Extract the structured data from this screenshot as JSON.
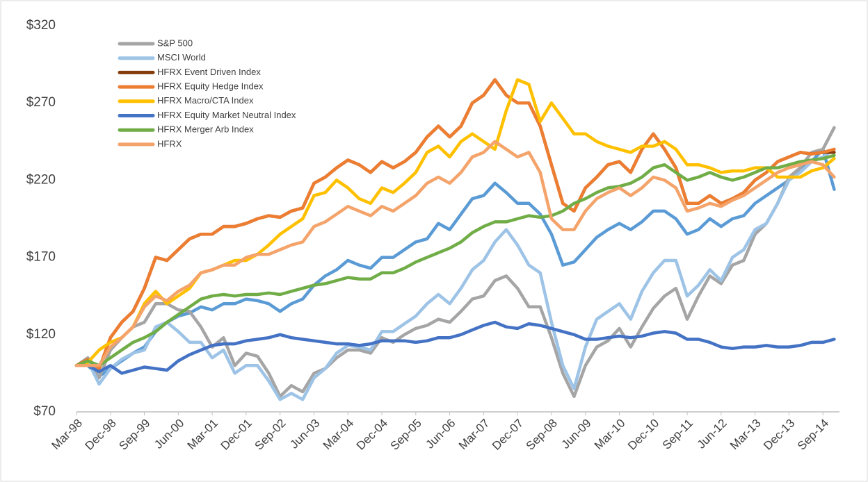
{
  "chart_data": {
    "type": "line",
    "categories": [
      "Mar-98",
      null,
      null,
      "Dec-98",
      null,
      null,
      "Sep-99",
      null,
      null,
      "Jun-00",
      null,
      null,
      "Mar-01",
      null,
      null,
      "Dec-01",
      null,
      null,
      "Sep-02",
      null,
      null,
      "Jun-03",
      null,
      null,
      "Mar-04",
      null,
      null,
      "Dec-04",
      null,
      null,
      "Sep-05",
      null,
      null,
      "Jun-06",
      null,
      null,
      "Mar-07",
      null,
      null,
      "Dec-07",
      null,
      null,
      "Sep-08",
      null,
      null,
      "Jun-09",
      null,
      null,
      "Mar-10",
      null,
      null,
      "Dec-10",
      null,
      null,
      "Sep-11",
      null,
      null,
      "Jun-12",
      null,
      null,
      "Mar-13",
      null,
      null,
      "Dec-13",
      null,
      null,
      "Sep-14",
      null
    ],
    "ylim": [
      70,
      320
    ],
    "yticks": [
      {
        "value": 70,
        "label": "$70"
      },
      {
        "value": 120,
        "label": "$120"
      },
      {
        "value": 170,
        "label": "$170"
      },
      {
        "value": 220,
        "label": "$220"
      },
      {
        "value": 270,
        "label": "$270"
      },
      {
        "value": 320,
        "label": "$320"
      }
    ],
    "series": [
      {
        "color": "#5b9bd5",
        "values": [
          100,
          100,
          93,
          98,
          103,
          108,
          112,
          122,
          128,
          132,
          134,
          138,
          136,
          140,
          140,
          143,
          142,
          140,
          135,
          140,
          143,
          152,
          158,
          162,
          168,
          165,
          163,
          170,
          170,
          175,
          180,
          182,
          192,
          188,
          198,
          208,
          210,
          218,
          212,
          205,
          205,
          198,
          185,
          165,
          167,
          175,
          183,
          188,
          192,
          188,
          193,
          200,
          200,
          195,
          185,
          188,
          195,
          190,
          195,
          197,
          205,
          210,
          215,
          220,
          228,
          232,
          240,
          214
        ]
      },
      {
        "name": "S&P 500",
        "color": "#a5a5a5",
        "values": [
          100,
          105,
          92,
          110,
          118,
          125,
          128,
          140,
          140,
          136,
          135,
          125,
          112,
          118,
          100,
          108,
          106,
          95,
          80,
          87,
          83,
          95,
          98,
          105,
          110,
          110,
          108,
          118,
          115,
          120,
          124,
          126,
          130,
          128,
          135,
          143,
          145,
          155,
          158,
          150,
          138,
          138,
          118,
          95,
          80,
          100,
          112,
          116,
          124,
          112,
          125,
          137,
          145,
          150,
          130,
          145,
          158,
          153,
          165,
          168,
          185,
          192,
          205,
          222,
          228,
          238,
          240,
          254
        ]
      },
      {
        "name": "MSCI World",
        "color": "#9dc3e6",
        "values": [
          100,
          103,
          88,
          98,
          104,
          108,
          110,
          125,
          128,
          122,
          115,
          115,
          105,
          110,
          95,
          100,
          100,
          90,
          78,
          82,
          78,
          92,
          98,
          108,
          113,
          112,
          110,
          122,
          122,
          127,
          132,
          140,
          146,
          140,
          150,
          162,
          168,
          180,
          188,
          178,
          165,
          160,
          128,
          100,
          85,
          112,
          130,
          135,
          140,
          130,
          148,
          160,
          168,
          168,
          145,
          152,
          162,
          155,
          170,
          175,
          188,
          192,
          205,
          220,
          225,
          232,
          235,
          240
        ]
      },
      {
        "name": "HFRX Event Driven Index",
        "color": "#843c0c",
        "values": [
          100,
          104,
          98,
          118,
          128,
          135,
          150,
          170,
          168,
          175,
          182,
          185,
          185,
          190,
          190,
          192,
          195,
          197,
          196,
          200,
          202,
          218,
          222,
          228,
          233,
          230,
          225,
          232,
          228,
          232,
          238,
          248,
          255,
          248,
          255,
          270,
          275,
          285,
          275,
          270,
          270,
          255,
          230,
          205,
          200,
          215,
          222,
          230,
          232,
          225,
          240,
          250,
          240,
          228,
          205,
          205,
          210,
          205,
          208,
          212,
          220,
          225,
          232,
          235,
          238,
          237,
          238,
          238
        ]
      },
      {
        "name": "HFRX Equity Hedge Index",
        "color": "#ed7d31",
        "values": [
          100,
          104,
          98,
          118,
          128,
          135,
          150,
          170,
          168,
          175,
          182,
          185,
          185,
          190,
          190,
          192,
          195,
          197,
          196,
          200,
          202,
          218,
          222,
          228,
          233,
          230,
          225,
          232,
          228,
          232,
          238,
          248,
          255,
          248,
          255,
          270,
          275,
          285,
          275,
          270,
          270,
          255,
          230,
          205,
          200,
          215,
          222,
          230,
          232,
          225,
          240,
          250,
          240,
          228,
          205,
          205,
          210,
          205,
          208,
          212,
          220,
          225,
          232,
          235,
          238,
          237,
          238,
          240
        ]
      },
      {
        "name": "HFRX Macro/CTA Index",
        "color": "#ffc000",
        "values": [
          100,
          102,
          110,
          115,
          118,
          125,
          140,
          148,
          140,
          145,
          150,
          160,
          162,
          165,
          168,
          168,
          172,
          178,
          185,
          190,
          195,
          210,
          212,
          220,
          215,
          208,
          205,
          215,
          212,
          218,
          225,
          238,
          242,
          235,
          245,
          250,
          245,
          240,
          265,
          285,
          282,
          258,
          270,
          260,
          250,
          250,
          245,
          242,
          240,
          238,
          242,
          242,
          245,
          240,
          230,
          230,
          228,
          225,
          226,
          226,
          228,
          228,
          222,
          222,
          222,
          226,
          228,
          234
        ]
      },
      {
        "name": "HFRX Equity Market Neutral Index",
        "color": "#4472c4",
        "values": [
          100,
          100,
          96,
          100,
          95,
          97,
          99,
          98,
          97,
          103,
          107,
          110,
          113,
          114,
          114,
          116,
          117,
          118,
          120,
          118,
          117,
          116,
          115,
          114,
          114,
          113,
          114,
          116,
          116,
          116,
          115,
          116,
          118,
          118,
          120,
          123,
          126,
          128,
          125,
          124,
          127,
          126,
          124,
          122,
          120,
          117,
          117,
          118,
          119,
          118,
          119,
          121,
          122,
          121,
          117,
          117,
          115,
          112,
          111,
          112,
          112,
          113,
          112,
          112,
          113,
          115,
          115,
          117
        ]
      },
      {
        "name": "HFRX Merger Arb Index",
        "color": "#70ad47",
        "values": [
          100,
          103,
          100,
          105,
          110,
          115,
          118,
          122,
          128,
          133,
          138,
          143,
          145,
          146,
          145,
          146,
          146,
          147,
          146,
          148,
          150,
          152,
          153,
          155,
          157,
          156,
          156,
          160,
          160,
          163,
          167,
          170,
          173,
          176,
          180,
          186,
          190,
          193,
          193,
          195,
          197,
          196,
          197,
          200,
          205,
          208,
          212,
          215,
          216,
          218,
          222,
          228,
          230,
          225,
          220,
          222,
          225,
          222,
          220,
          222,
          225,
          228,
          228,
          230,
          232,
          233,
          234,
          236
        ]
      },
      {
        "name": "HFRX",
        "color": "#f4a36a",
        "values": [
          100,
          100,
          100,
          112,
          118,
          125,
          138,
          145,
          142,
          148,
          152,
          160,
          162,
          165,
          165,
          170,
          172,
          172,
          175,
          178,
          180,
          190,
          193,
          198,
          203,
          200,
          197,
          203,
          200,
          205,
          210,
          218,
          222,
          218,
          225,
          235,
          238,
          245,
          240,
          235,
          238,
          225,
          195,
          188,
          188,
          200,
          208,
          212,
          215,
          210,
          215,
          222,
          220,
          215,
          200,
          202,
          205,
          203,
          207,
          210,
          215,
          220,
          225,
          228,
          230,
          232,
          230,
          222
        ]
      }
    ]
  }
}
